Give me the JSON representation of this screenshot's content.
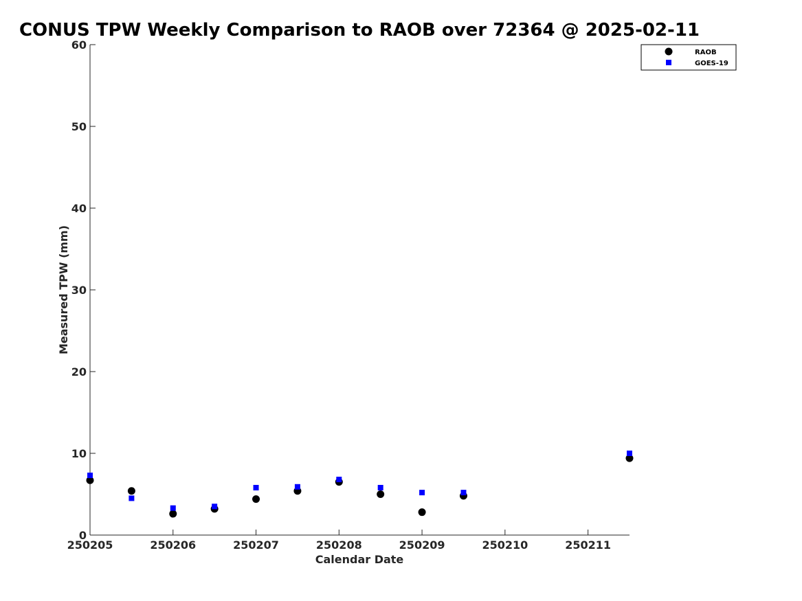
{
  "chart_data": {
    "type": "scatter",
    "title": "CONUS TPW Weekly Comparison to RAOB over 72364 @ 2025-02-11",
    "xlabel": "Calendar Date",
    "ylabel": "Measured TPW (mm)",
    "xlim": [
      250205,
      250211.5
    ],
    "ylim": [
      0,
      60
    ],
    "xticks": [
      250205,
      250206,
      250207,
      250208,
      250209,
      250210,
      250211
    ],
    "xtick_labels": [
      "250205",
      "250206",
      "250207",
      "250208",
      "250209",
      "250210",
      "250211"
    ],
    "yticks": [
      0,
      10,
      20,
      30,
      40,
      50,
      60
    ],
    "ytick_labels": [
      "0",
      "10",
      "20",
      "30",
      "40",
      "50",
      "60"
    ],
    "grid": false,
    "legend_position": "top-right",
    "series": [
      {
        "name": "RAOB",
        "marker": "circle",
        "color": "#000000",
        "x": [
          250205,
          250205.5,
          250206,
          250206.5,
          250207,
          250207.5,
          250208,
          250208.5,
          250209,
          250209.5,
          250211.5
        ],
        "values": [
          6.7,
          5.4,
          2.6,
          3.2,
          4.4,
          5.4,
          6.5,
          5.0,
          2.8,
          4.8,
          9.4
        ]
      },
      {
        "name": "GOES-19",
        "marker": "square",
        "color": "#0000ff",
        "x": [
          250205,
          250205.5,
          250206,
          250206.5,
          250207,
          250207.5,
          250208,
          250208.5,
          250209,
          250209.5,
          250211.5
        ],
        "values": [
          7.3,
          4.5,
          3.3,
          3.5,
          5.8,
          5.9,
          6.8,
          5.8,
          5.2,
          5.2,
          10.0
        ]
      }
    ]
  }
}
